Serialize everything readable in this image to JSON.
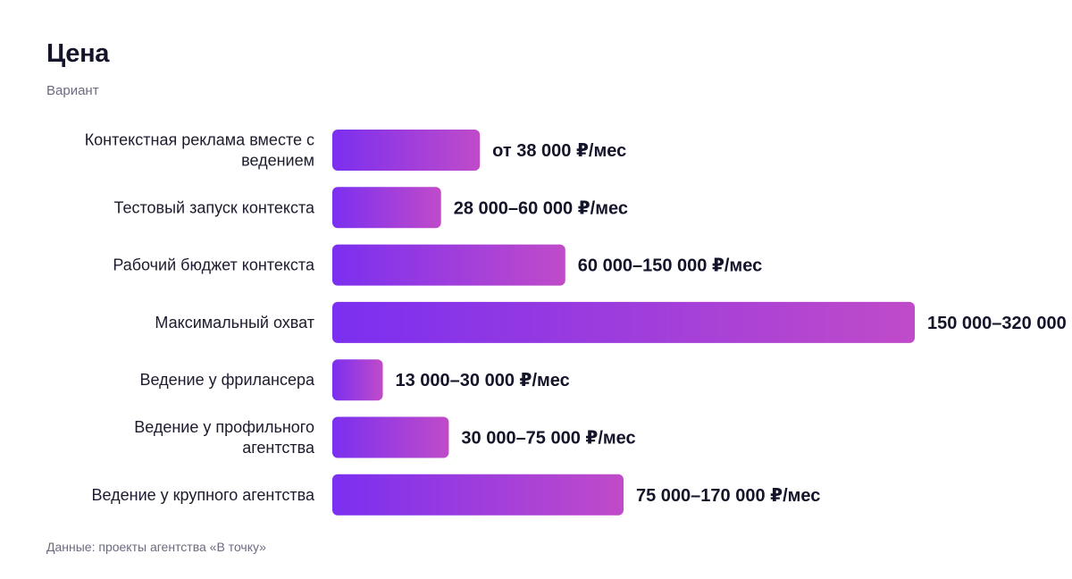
{
  "chart_data": {
    "type": "bar",
    "orientation": "horizontal",
    "title": "Цена",
    "subtitle": "Вариант",
    "source": "Данные: проекты агентства «В точку»",
    "categories": [
      [
        "Контекстная реклама вместе с",
        "ведением"
      ],
      [
        "Тестовый запуск контекста"
      ],
      [
        "Рабочий бюджет контекста"
      ],
      [
        "Максимальный охват"
      ],
      [
        "Ведение у фрилансера"
      ],
      [
        "Ведение у профильного",
        "агентства"
      ],
      [
        "Ведение у крупного агентства"
      ]
    ],
    "values": [
      38000,
      28000,
      60000,
      150000,
      13000,
      30000,
      75000
    ],
    "value_labels": [
      "от 38 000 ₽/мес",
      "28 000–60 000 ₽/мес",
      "60 000–150 000 ₽/мес",
      "150 000–320 000",
      "13 000–30 000 ₽/мес",
      "30 000–75 000 ₽/мес",
      "75 000–170 000 ₽/мес"
    ],
    "xlim": [
      0,
      150000
    ],
    "grid": false,
    "legend": "none",
    "colors": {
      "bar_start": "#7b2ff0",
      "bar_end": "#c04bc9",
      "text": "#14142b",
      "muted": "#6b6b80"
    }
  }
}
